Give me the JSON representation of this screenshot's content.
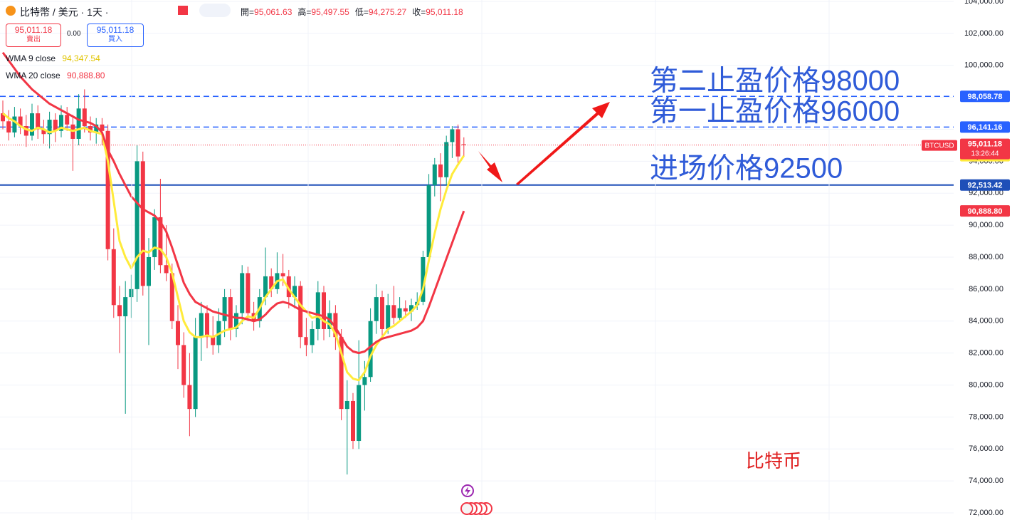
{
  "header": {
    "symbol": "比特幣 / 美元 · 1天 ·",
    "ohlc": [
      [
        "開=",
        "95,061.63"
      ],
      [
        "高=",
        "95,497.55"
      ],
      [
        "低=",
        "94,275.27"
      ],
      [
        "收=",
        "95,011.18"
      ]
    ]
  },
  "trade": {
    "sell_price": "95,011.18",
    "sell": "賣出",
    "spread": "0.00",
    "buy_price": "95,011.18",
    "buy": "買入"
  },
  "chart_data": {
    "type": "candlestick",
    "up_color": "#089981",
    "down_color": "#f23645",
    "candles": [
      [
        97000,
        97800,
        96000,
        96500
      ],
      [
        96500,
        97200,
        95300,
        95800
      ],
      [
        95800,
        97400,
        95500,
        96800
      ],
      [
        96800,
        97300,
        95700,
        96200
      ],
      [
        96200,
        96900,
        94900,
        95600
      ],
      [
        95600,
        97600,
        95300,
        97000
      ],
      [
        97000,
        97500,
        95400,
        96000
      ],
      [
        96000,
        96600,
        95100,
        95700
      ],
      [
        95700,
        97100,
        94800,
        96600
      ],
      [
        96600,
        97000,
        95200,
        95900
      ],
      [
        95900,
        97500,
        95500,
        96900
      ],
      [
        96900,
        97400,
        95900,
        96300
      ],
      [
        96300,
        96900,
        93400,
        95400
      ],
      [
        95400,
        98200,
        95000,
        97300
      ],
      [
        97300,
        98500,
        95800,
        96200
      ],
      [
        96200,
        96800,
        95300,
        95800
      ],
      [
        95800,
        96700,
        95100,
        96300
      ],
      [
        96300,
        96700,
        95000,
        95900
      ],
      [
        95900,
        96300,
        87800,
        88500
      ],
      [
        88500,
        89800,
        84200,
        85000
      ],
      [
        85000,
        86200,
        82000,
        84300
      ],
      [
        84300,
        86500,
        78200,
        85500
      ],
      [
        85500,
        86900,
        84200,
        86000
      ],
      [
        86000,
        95000,
        85200,
        94000
      ],
      [
        94000,
        94600,
        85600,
        86200
      ],
      [
        86200,
        89200,
        82500,
        88000
      ],
      [
        88000,
        91000,
        87200,
        90500
      ],
      [
        90500,
        92900,
        87000,
        87500
      ],
      [
        87500,
        90000,
        86500,
        87000
      ],
      [
        87000,
        87600,
        83500,
        84000
      ],
      [
        84000,
        85000,
        81000,
        82500
      ],
      [
        82500,
        83300,
        79200,
        80000
      ],
      [
        80000,
        82000,
        76800,
        78500
      ],
      [
        78500,
        84200,
        78000,
        83000
      ],
      [
        83000,
        85200,
        81500,
        84500
      ],
      [
        84500,
        85000,
        82300,
        83000
      ],
      [
        83000,
        84300,
        81900,
        82500
      ],
      [
        82500,
        84800,
        82000,
        84000
      ],
      [
        84000,
        86000,
        83000,
        85500
      ],
      [
        85500,
        86000,
        82800,
        83500
      ],
      [
        83500,
        85000,
        83000,
        84500
      ],
      [
        84500,
        87500,
        83800,
        87000
      ],
      [
        87000,
        87400,
        84000,
        84500
      ],
      [
        84500,
        85200,
        83400,
        84000
      ],
      [
        84000,
        86000,
        83600,
        85500
      ],
      [
        85500,
        88600,
        85000,
        86800
      ],
      [
        86800,
        87300,
        85500,
        86000
      ],
      [
        86000,
        88300,
        85700,
        87000
      ],
      [
        87000,
        88200,
        86200,
        86800
      ],
      [
        86800,
        87200,
        84800,
        85500
      ],
      [
        85500,
        86800,
        84800,
        86200
      ],
      [
        86200,
        86500,
        82300,
        83000
      ],
      [
        83000,
        84200,
        81800,
        82500
      ],
      [
        82500,
        84000,
        82000,
        83500
      ],
      [
        83500,
        86500,
        82800,
        85800
      ],
      [
        85800,
        86200,
        82800,
        83500
      ],
      [
        83500,
        85300,
        83000,
        84500
      ],
      [
        84500,
        85000,
        82200,
        83000
      ],
      [
        83000,
        83500,
        77800,
        78500
      ],
      [
        78500,
        80300,
        74400,
        79000
      ],
      [
        79000,
        79500,
        76000,
        76500
      ],
      [
        76500,
        82800,
        76000,
        80000
      ],
      [
        80000,
        81500,
        78400,
        80500
      ],
      [
        80500,
        84800,
        80200,
        84000
      ],
      [
        84000,
        86300,
        83200,
        85500
      ],
      [
        85500,
        85900,
        83000,
        83500
      ],
      [
        83500,
        85700,
        83200,
        85000
      ],
      [
        85000,
        86200,
        83800,
        84200
      ],
      [
        84200,
        85500,
        84000,
        84800
      ],
      [
        84800,
        85300,
        84200,
        84600
      ],
      [
        84600,
        85400,
        84000,
        85000
      ],
      [
        85000,
        85800,
        84700,
        85200
      ],
      [
        85200,
        88400,
        85000,
        88000
      ],
      [
        88000,
        93200,
        87700,
        92500
      ],
      [
        92500,
        94200,
        91800,
        93800
      ],
      [
        93800,
        94500,
        91500,
        93000
      ],
      [
        93000,
        95600,
        92500,
        95200
      ],
      [
        95200,
        96200,
        94200,
        96000
      ],
      [
        96000,
        96300,
        93800,
        94300
      ],
      [
        95061.63,
        95497.55,
        94275.27,
        95011.18
      ]
    ],
    "series": [
      {
        "name": "WMA 9 close",
        "color": "#ffeb3b",
        "last_label": "94,347.54",
        "values": [
          97000,
          96700,
          96500,
          96200,
          96000,
          95900,
          96100,
          96000,
          95800,
          95900,
          96100,
          96000,
          95900,
          96000,
          96100,
          95900,
          95800,
          95700,
          94000,
          91500,
          89000,
          88000,
          87300,
          88000,
          88400,
          88300,
          88600,
          88500,
          88000,
          87000,
          85500,
          84000,
          83300,
          83000,
          83000,
          83100,
          83000,
          83200,
          83400,
          83500,
          83600,
          84000,
          84300,
          84200,
          84800,
          85500,
          86000,
          86500,
          86600,
          86000,
          85500,
          85000,
          84600,
          84200,
          84300,
          84000,
          83800,
          83200,
          82000,
          80800,
          80400,
          80300,
          80800,
          81800,
          82500,
          83000,
          83500,
          83700,
          84000,
          84300,
          84600,
          85000,
          86000,
          87800,
          89500,
          91000,
          92200,
          93200,
          93800,
          94347.54
        ]
      },
      {
        "name": "WMA 20 close",
        "color": "#f23645",
        "last_label": "90,888.80",
        "values": [
          100800,
          100300,
          99800,
          99300,
          98900,
          98500,
          98200,
          97900,
          97600,
          97400,
          97200,
          97000,
          96800,
          96600,
          96500,
          96400,
          96200,
          95800,
          94700,
          94000,
          93200,
          92500,
          91800,
          91400,
          91000,
          90800,
          90600,
          90200,
          89600,
          88600,
          87500,
          86400,
          85700,
          85200,
          85000,
          84800,
          84600,
          84500,
          84400,
          84300,
          84200,
          84200,
          84100,
          84000,
          84100,
          84400,
          84800,
          85100,
          85200,
          85100,
          84900,
          84700,
          84600,
          84500,
          84400,
          84300,
          84100,
          83600,
          83000,
          82400,
          82100,
          82000,
          82100,
          82400,
          82700,
          82900,
          83000,
          83100,
          83200,
          83300,
          83400,
          83600,
          84000,
          84900,
          85900,
          86900,
          87900,
          88900,
          89900,
          90888.8
        ]
      }
    ],
    "ylim": [
      72000,
      104000
    ],
    "yticks": [
      {
        "value": 72000,
        "label": "72,000.00"
      },
      {
        "value": 74000,
        "label": "74,000.00"
      },
      {
        "value": 76000,
        "label": "76,000.00"
      },
      {
        "value": 78000,
        "label": "78,000.00"
      },
      {
        "value": 80000,
        "label": "80,000.00"
      },
      {
        "value": 82000,
        "label": "82,000.00"
      },
      {
        "value": 84000,
        "label": "84,000.00"
      },
      {
        "value": 86000,
        "label": "86,000.00"
      },
      {
        "value": 88000,
        "label": "88,000.00"
      },
      {
        "value": 90000,
        "label": "90,000.00"
      },
      {
        "value": 92000,
        "label": "92,000.00"
      },
      {
        "value": 94000,
        "label": "94,000.00"
      },
      {
        "value": 96000,
        "label": "96,000.00"
      },
      {
        "value": 98000,
        "label": "98,000.00"
      },
      {
        "value": 100000,
        "label": "100,000.00"
      },
      {
        "value": 102000,
        "label": "102,000.00"
      },
      {
        "value": 104000,
        "label": "104,000.00"
      }
    ],
    "grid": true,
    "hlines": [
      {
        "value": 98058.78,
        "label": "98,058.78",
        "style": "dashed",
        "color": "#2962ff"
      },
      {
        "value": 96141.16,
        "label": "96,141.16",
        "style": "dashed",
        "color": "#2962ff"
      },
      {
        "value": 92513.42,
        "label": "92,513.42",
        "style": "solid",
        "color": "#1e4fb8"
      }
    ],
    "last_price": {
      "symbol": "BTCUSD",
      "label": "95,011.18",
      "countdown": "13:26:44"
    },
    "annotations": [
      "第二止盈价格98000",
      "第一止盈价格96000",
      "进场价格92500"
    ],
    "watermark": "比特币"
  }
}
